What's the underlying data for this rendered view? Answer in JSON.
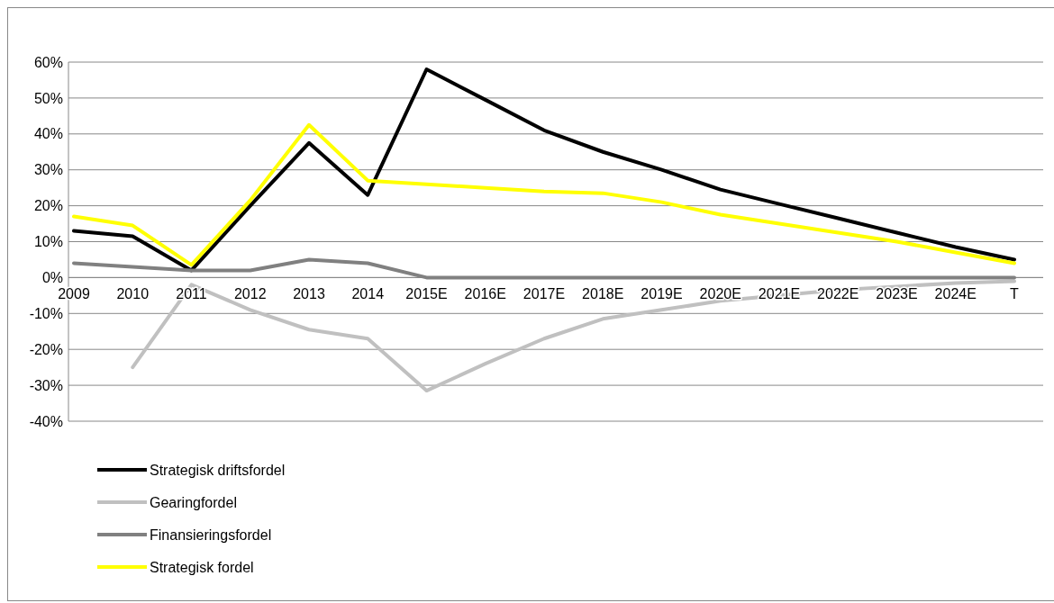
{
  "chart_data": {
    "type": "line",
    "categories": [
      "2009",
      "2010",
      "2011",
      "2012",
      "2013",
      "2014",
      "2015E",
      "2016E",
      "2017E",
      "2018E",
      "2019E",
      "2020E",
      "2021E",
      "2022E",
      "2023E",
      "2024E",
      "T"
    ],
    "series": [
      {
        "name": "Strategisk driftsfordel",
        "color": "#000000",
        "values": [
          13,
          11.5,
          2,
          20,
          37.5,
          23,
          58,
          49.5,
          41,
          35,
          30,
          24.5,
          20.5,
          16.5,
          12.5,
          8.5,
          5
        ]
      },
      {
        "name": "Gearingfordel",
        "color": "#c0c0c0",
        "values": [
          null,
          -25,
          -2,
          -9,
          -14.5,
          -17,
          -31.5,
          -24,
          -17,
          -11.5,
          -9,
          -6.5,
          -5,
          -3.5,
          -2.5,
          -1.5,
          -1
        ]
      },
      {
        "name": "Finansieringsfordel",
        "color": "#808080",
        "values": [
          4,
          3,
          2,
          2,
          5,
          4,
          0,
          0,
          0,
          0,
          0,
          0,
          0,
          0,
          0,
          0,
          0
        ]
      },
      {
        "name": "Strategisk fordel",
        "color": "#ffff00",
        "values": [
          17,
          14.5,
          3.5,
          21.5,
          42.5,
          27,
          26,
          25,
          24,
          23.5,
          21,
          17.5,
          15,
          12.5,
          10,
          7,
          4
        ]
      }
    ],
    "ylim": [
      -40,
      60
    ],
    "yticks": [
      {
        "value": -40,
        "label": "-40%"
      },
      {
        "value": -30,
        "label": "-30%"
      },
      {
        "value": -20,
        "label": "-20%"
      },
      {
        "value": -10,
        "label": "-10%"
      },
      {
        "value": 0,
        "label": "0%"
      },
      {
        "value": 10,
        "label": "10%"
      },
      {
        "value": 20,
        "label": "20%"
      },
      {
        "value": 30,
        "label": "30%"
      },
      {
        "value": 40,
        "label": "40%"
      },
      {
        "value": 50,
        "label": "50%"
      },
      {
        "value": 60,
        "label": "60%"
      }
    ],
    "grid": "y",
    "legend": "bottom left",
    "marker": "none",
    "line_style": "solid"
  }
}
